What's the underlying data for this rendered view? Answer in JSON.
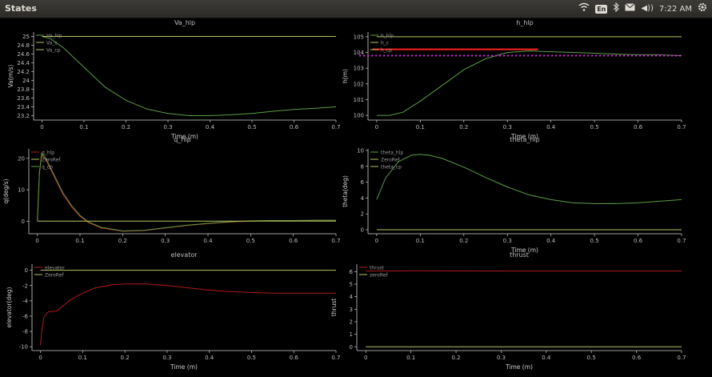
{
  "window": {
    "title": "States",
    "tray": {
      "lang": "En",
      "volume": "◀))",
      "time": "7:22 AM"
    }
  },
  "colors": {
    "bg": "#000000",
    "axis": "#cfcfcf",
    "green": "#5a9d45",
    "olive": "#b7c45f",
    "red": "#b31a1a",
    "magenta": "#d42ae3",
    "bright_red": "#ff2222"
  },
  "chart_data": [
    {
      "id": "va",
      "type": "line",
      "title": "Va_hlp",
      "xlabel": "Time (m)",
      "ylabel": "Va(m/s)",
      "xlim": [
        -0.02,
        0.7
      ],
      "ylim": [
        23.1,
        25.1
      ],
      "xticks": [
        "0",
        "0.1",
        "0.2",
        "0.3",
        "0.4",
        "0.5",
        "0.6",
        "0.7"
      ],
      "yticks": [
        "23.2",
        "23.4",
        "23.6",
        "23.8",
        "24",
        "24.2",
        "24.4",
        "24.6",
        "24.8",
        "25"
      ],
      "legend": [
        "Va_hlp",
        "Va_c",
        "Va_cp"
      ],
      "series": [
        {
          "name": "Va_hlp",
          "color": "#5a9d45",
          "x": [
            0,
            0.02,
            0.05,
            0.1,
            0.15,
            0.2,
            0.25,
            0.3,
            0.35,
            0.4,
            0.45,
            0.5,
            0.55,
            0.6,
            0.65,
            0.7
          ],
          "y": [
            25.0,
            24.95,
            24.75,
            24.3,
            23.85,
            23.55,
            23.35,
            23.25,
            23.2,
            23.2,
            23.22,
            23.25,
            23.3,
            23.34,
            23.37,
            23.4
          ]
        },
        {
          "name": "Va_c",
          "color": "#b7c45f",
          "x": [
            0,
            0.7
          ],
          "y": [
            25.0,
            25.0
          ]
        }
      ]
    },
    {
      "id": "h",
      "type": "line",
      "title": "h_hlp",
      "xlabel": "Time (m)",
      "ylabel": "h(m)",
      "xlim": [
        -0.02,
        0.7
      ],
      "ylim": [
        99.7,
        105.3
      ],
      "xticks": [
        "0",
        "0.1",
        "0.2",
        "0.3",
        "0.4",
        "0.5",
        "0.6",
        "0.7"
      ],
      "yticks": [
        "100",
        "101",
        "102",
        "103",
        "104",
        "105"
      ],
      "legend": [
        "h_hlp",
        "h_c",
        "h_cp"
      ],
      "series": [
        {
          "name": "h_hlp",
          "color": "#5a9d45",
          "x": [
            0,
            0.03,
            0.06,
            0.1,
            0.15,
            0.2,
            0.25,
            0.3,
            0.35,
            0.4,
            0.45,
            0.5,
            0.55,
            0.6,
            0.65,
            0.7
          ],
          "y": [
            100.0,
            100.0,
            100.2,
            100.9,
            101.9,
            102.9,
            103.6,
            104.0,
            104.1,
            104.05,
            104.0,
            103.95,
            103.9,
            103.85,
            103.85,
            103.8
          ]
        },
        {
          "name": "h_c",
          "color": "#b7c45f",
          "x": [
            0,
            0.7
          ],
          "y": [
            105.0,
            105.0
          ]
        }
      ],
      "markers": [
        {
          "kind": "segment",
          "color": "#ff2222",
          "x": [
            -0.01,
            0.37
          ],
          "y": [
            104.2,
            104.2
          ]
        },
        {
          "kind": "dots",
          "color": "#d42ae3",
          "x": [
            -0.04,
            0.7
          ],
          "y": [
            103.8,
            103.8
          ]
        }
      ]
    },
    {
      "id": "q",
      "type": "line",
      "title": "q_hlp",
      "xlabel": "",
      "ylabel": "q(deg/s)",
      "xlim": [
        -0.02,
        0.7
      ],
      "ylim": [
        -4,
        23
      ],
      "xticks": [
        "0",
        "0.1",
        "0.2",
        "0.3",
        "0.4",
        "0.5",
        "0.6",
        "0.7"
      ],
      "yticks": [
        "0",
        "10",
        "20"
      ],
      "legend": [
        "q_hlp",
        "ZeroRef",
        "q_cp"
      ],
      "series": [
        {
          "name": "q_hlp",
          "color": "#b31a1a",
          "x": [
            0,
            0.005,
            0.01,
            0.02,
            0.04,
            0.06,
            0.08,
            0.1,
            0.12,
            0.15,
            0.2,
            0.25,
            0.3,
            0.35,
            0.4,
            0.45,
            0.5,
            0.55,
            0.6,
            0.65,
            0.7
          ],
          "y": [
            0,
            15.0,
            21.0,
            19.5,
            14.0,
            8.5,
            4.5,
            1.5,
            -0.5,
            -2.2,
            -3.2,
            -3.0,
            -2.2,
            -1.4,
            -0.8,
            -0.3,
            0.0,
            0.1,
            0.1,
            0.1,
            0.1
          ]
        },
        {
          "name": "q_cp",
          "color": "#5a9d45",
          "x": [
            0,
            0.005,
            0.01,
            0.02,
            0.04,
            0.06,
            0.08,
            0.1,
            0.12,
            0.15,
            0.2,
            0.25,
            0.3,
            0.35,
            0.4,
            0.45,
            0.5,
            0.55,
            0.6,
            0.65,
            0.7
          ],
          "y": [
            0,
            15.5,
            21.5,
            20.0,
            14.5,
            9.0,
            5.0,
            1.8,
            -0.3,
            -2.0,
            -3.1,
            -2.9,
            -2.1,
            -1.3,
            -0.7,
            -0.2,
            0.1,
            0.2,
            0.2,
            0.3,
            0.3
          ]
        },
        {
          "name": "ZeroRef",
          "color": "#b7c45f",
          "x": [
            0,
            0.7
          ],
          "y": [
            0,
            0
          ]
        }
      ]
    },
    {
      "id": "theta",
      "type": "line",
      "title": "theta_hlp",
      "xlabel": "Time (m)",
      "ylabel": "theta(deg)",
      "xlim": [
        -0.02,
        0.7
      ],
      "ylim": [
        -0.5,
        10.2
      ],
      "xticks": [
        "0",
        "0.1",
        "0.2",
        "0.3",
        "0.4",
        "0.5",
        "0.6",
        "0.7"
      ],
      "yticks": [
        "0",
        "2",
        "4",
        "6",
        "8",
        "10"
      ],
      "legend": [
        "theta_hlp",
        "ZeroRef",
        "theta_cp"
      ],
      "series": [
        {
          "name": "theta_hlp",
          "color": "#5a9d45",
          "x": [
            0,
            0.02,
            0.05,
            0.08,
            0.1,
            0.12,
            0.15,
            0.2,
            0.25,
            0.3,
            0.35,
            0.4,
            0.45,
            0.5,
            0.55,
            0.6,
            0.65,
            0.7
          ],
          "y": [
            3.8,
            6.5,
            8.6,
            9.4,
            9.5,
            9.4,
            9.0,
            7.9,
            6.6,
            5.4,
            4.4,
            3.8,
            3.4,
            3.3,
            3.3,
            3.4,
            3.6,
            3.8
          ]
        },
        {
          "name": "ZeroRef",
          "color": "#b7c45f",
          "x": [
            0,
            0.7
          ],
          "y": [
            0,
            0
          ]
        }
      ]
    },
    {
      "id": "elevator",
      "type": "line",
      "title": "elevator",
      "xlabel": "Time (m)",
      "ylabel": "elevator(deg)",
      "xlim": [
        -0.02,
        0.7
      ],
      "ylim": [
        -10.5,
        0.8
      ],
      "xticks": [
        "0",
        "0.1",
        "0.2",
        "0.3",
        "0.4",
        "0.5",
        "0.6",
        "0.7"
      ],
      "yticks": [
        "-10",
        "-8",
        "-6",
        "-4",
        "-2",
        "0"
      ],
      "legend": [
        "elevator",
        "ZeroRef"
      ],
      "series": [
        {
          "name": "elevator",
          "color": "#b31a1a",
          "x": [
            0,
            0.003,
            0.008,
            0.015,
            0.02,
            0.03,
            0.04,
            0.05,
            0.07,
            0.1,
            0.13,
            0.17,
            0.2,
            0.25,
            0.3,
            0.35,
            0.4,
            0.45,
            0.5,
            0.55,
            0.6,
            0.65,
            0.7
          ],
          "y": [
            -9.8,
            -8.0,
            -6.2,
            -5.6,
            -5.4,
            -5.4,
            -5.3,
            -4.8,
            -3.9,
            -3.0,
            -2.3,
            -1.9,
            -1.8,
            -1.8,
            -2.0,
            -2.3,
            -2.6,
            -2.8,
            -2.9,
            -3.0,
            -3.0,
            -3.0,
            -3.0
          ]
        },
        {
          "name": "ZeroRef",
          "color": "#b7c45f",
          "x": [
            0,
            0.7
          ],
          "y": [
            0,
            0
          ]
        }
      ]
    },
    {
      "id": "thrust",
      "type": "line",
      "title": "thrust",
      "xlabel": "Time (m)",
      "ylabel": "thrust",
      "xlim": [
        -0.02,
        0.7
      ],
      "ylim": [
        -0.3,
        6.6
      ],
      "xticks": [
        "0",
        "0.1",
        "0.2",
        "0.3",
        "0.4",
        "0.5",
        "0.6",
        "0.7"
      ],
      "yticks": [
        "0",
        "1",
        "2",
        "3",
        "4",
        "5",
        "6"
      ],
      "legend": [
        "thrust",
        "zeroRef"
      ],
      "series": [
        {
          "name": "thrust",
          "color": "#b31a1a",
          "x": [
            0,
            0.02,
            0.1,
            0.3,
            0.5,
            0.7
          ],
          "y": [
            6.05,
            6.05,
            6.07,
            6.05,
            6.05,
            6.05
          ]
        },
        {
          "name": "zeroRef",
          "color": "#b7c45f",
          "x": [
            0,
            0.7
          ],
          "y": [
            0,
            0
          ]
        }
      ]
    }
  ]
}
